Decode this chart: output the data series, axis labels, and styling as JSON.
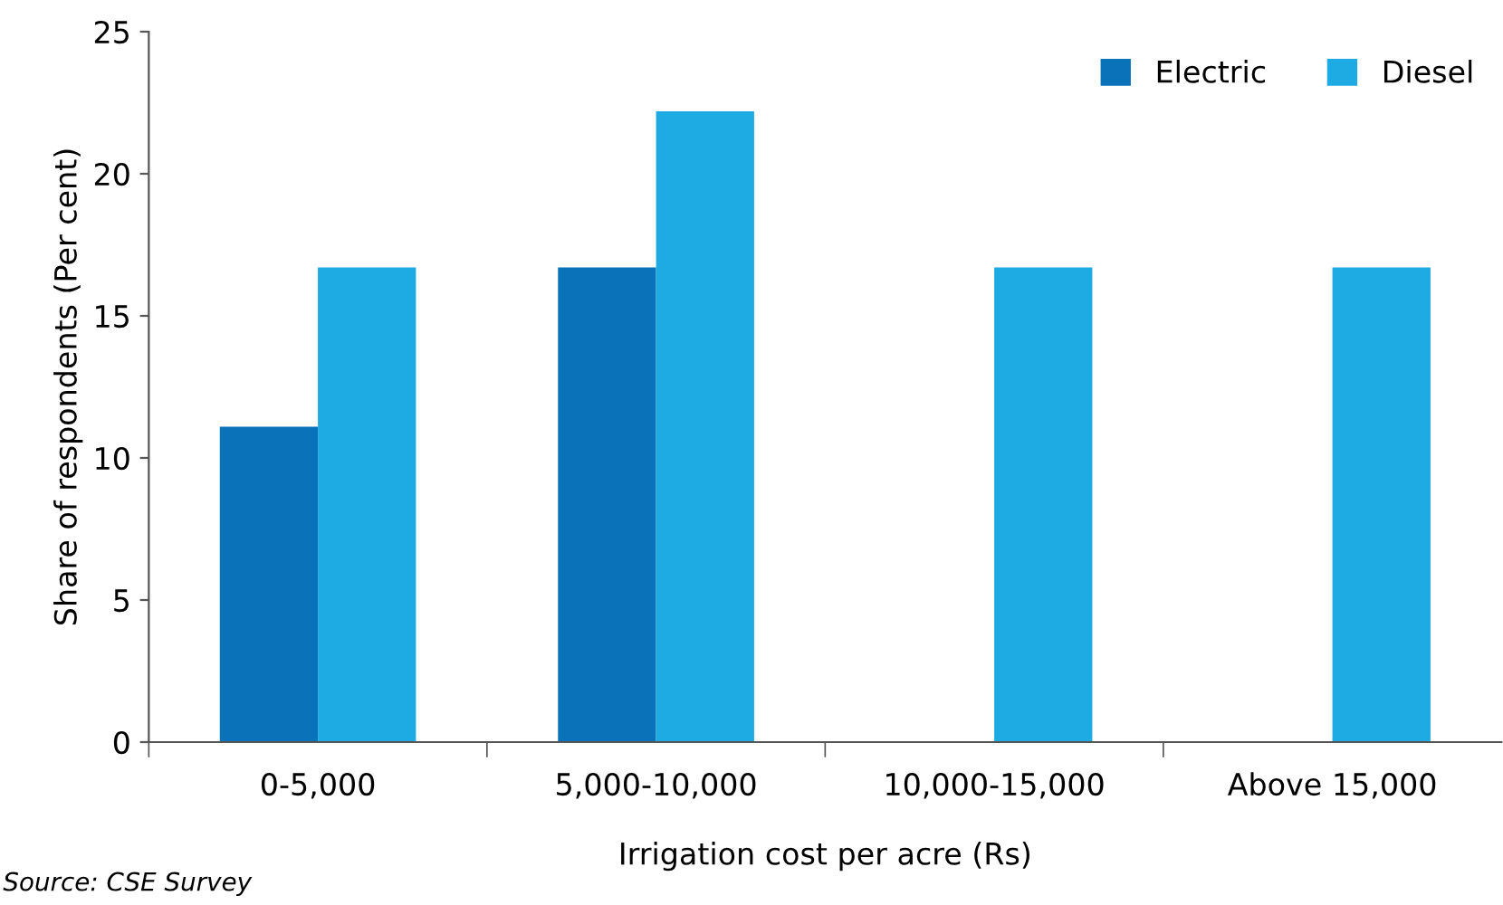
{
  "chart_data": {
    "type": "bar",
    "xlabel": "Irrigation cost per acre (Rs)",
    "ylabel": "Share of respondents (Per cent)",
    "categories": [
      "0-5,000",
      "5,000-10,000",
      "10,000-15,000",
      "Above 15,000"
    ],
    "series": [
      {
        "name": "Electric",
        "color": "#0a72b8",
        "values": [
          11.1,
          16.7,
          0,
          0
        ]
      },
      {
        "name": "Diesel",
        "color": "#1eaae2",
        "values": [
          16.7,
          22.2,
          16.7,
          16.7
        ]
      }
    ],
    "ylim": [
      0,
      25
    ],
    "yticks": [
      0,
      5,
      10,
      15,
      20,
      25
    ],
    "grid": false,
    "legend": "top right",
    "annotations": [
      "Source: CSE Survey"
    ]
  }
}
